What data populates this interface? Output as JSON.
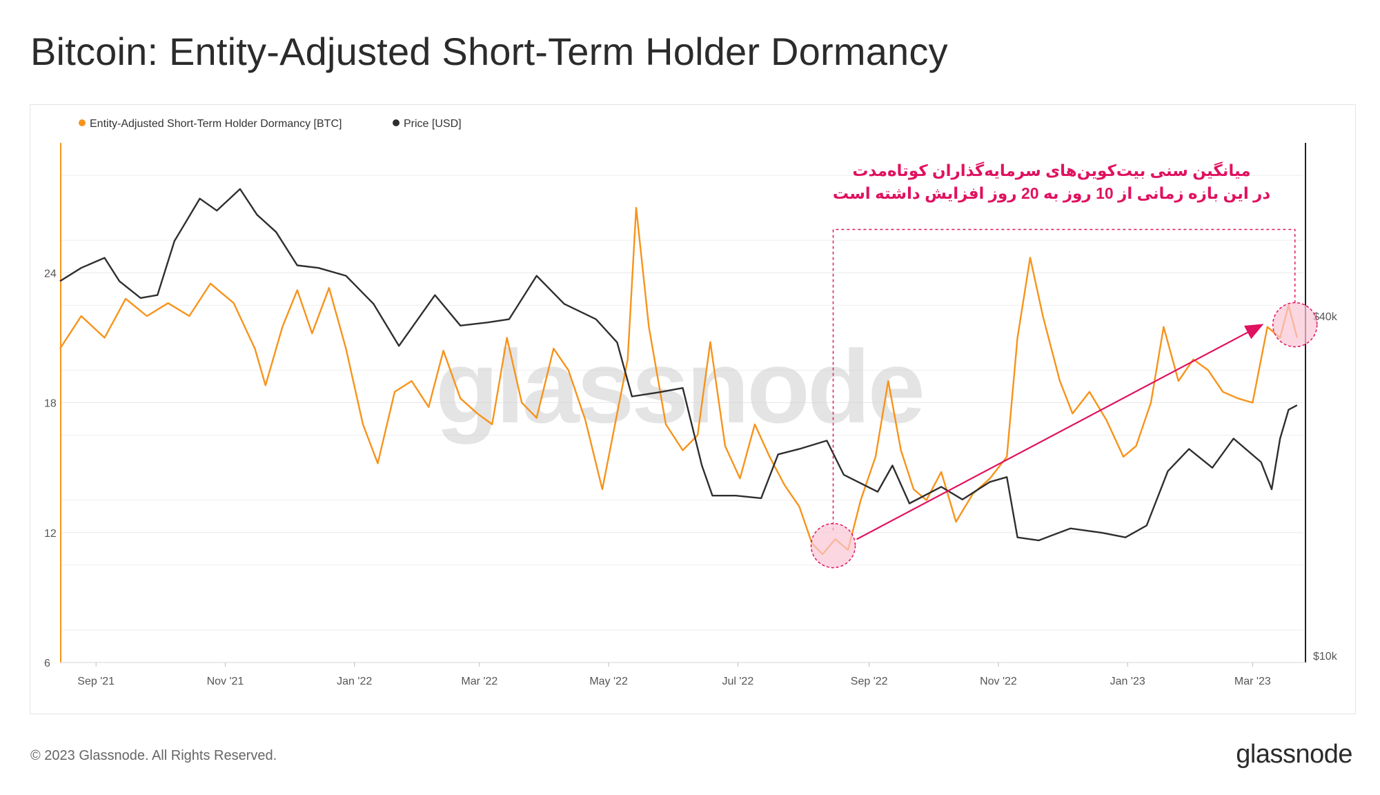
{
  "title": "Bitcoin: Entity-Adjusted Short-Term Holder Dormancy",
  "footer": {
    "copyright": "© 2023 Glassnode. All Rights Reserved.",
    "brand": "glassnode",
    "watermark": "glassnode"
  },
  "colors": {
    "dormancy": "#f7931a",
    "price": "#2e2e2e",
    "annotation": "#e0115f",
    "highlight_fill": "#f9c6d6"
  },
  "chart_data": {
    "type": "line",
    "legend": [
      {
        "name": "Entity-Adjusted Short-Term Holder Dormancy [BTC]",
        "color": "#f7931a"
      },
      {
        "name": "Price [USD]",
        "color": "#2e2e2e"
      }
    ],
    "legend_position": "top-left",
    "x_ticks": [
      "Sep '21",
      "Nov '21",
      "Jan '22",
      "Mar '22",
      "May '22",
      "Jul '22",
      "Sep '22",
      "Nov '22",
      "Jan '23",
      "Mar '23"
    ],
    "x_tick_dates": [
      "2021-09-01",
      "2021-11-01",
      "2022-01-01",
      "2022-03-01",
      "2022-05-01",
      "2022-07-01",
      "2022-09-01",
      "2022-11-01",
      "2023-01-01",
      "2023-03-01"
    ],
    "x_range": [
      "2021-08-15",
      "2023-03-25"
    ],
    "y_left": {
      "ticks": [
        "6",
        "12",
        "18",
        "24"
      ],
      "tick_values": [
        6,
        12,
        18,
        24
      ],
      "range": [
        6,
        30
      ]
    },
    "y_right": {
      "ticks": [
        "$10k",
        "$40k"
      ],
      "tick_values": [
        10000,
        40000
      ],
      "scale": "log",
      "range": [
        10000,
        80000
      ]
    },
    "grid": true,
    "series": [
      {
        "name": "Entity-Adjusted Short-Term Holder Dormancy [BTC]",
        "axis": "left",
        "points": [
          [
            "2021-08-15",
            20.5
          ],
          [
            "2021-08-25",
            22.0
          ],
          [
            "2021-09-05",
            21.0
          ],
          [
            "2021-09-15",
            22.8
          ],
          [
            "2021-09-25",
            22.0
          ],
          [
            "2021-10-05",
            22.6
          ],
          [
            "2021-10-15",
            22.0
          ],
          [
            "2021-10-25",
            23.5
          ],
          [
            "2021-11-05",
            22.6
          ],
          [
            "2021-11-15",
            20.5
          ],
          [
            "2021-11-20",
            18.8
          ],
          [
            "2021-11-28",
            21.5
          ],
          [
            "2021-12-05",
            23.2
          ],
          [
            "2021-12-12",
            21.2
          ],
          [
            "2021-12-20",
            23.3
          ],
          [
            "2021-12-28",
            20.5
          ],
          [
            "2022-01-05",
            17.0
          ],
          [
            "2022-01-12",
            15.2
          ],
          [
            "2022-01-20",
            18.5
          ],
          [
            "2022-01-28",
            19.0
          ],
          [
            "2022-02-05",
            17.8
          ],
          [
            "2022-02-12",
            20.4
          ],
          [
            "2022-02-20",
            18.2
          ],
          [
            "2022-02-28",
            17.5
          ],
          [
            "2022-03-07",
            17.0
          ],
          [
            "2022-03-14",
            21.0
          ],
          [
            "2022-03-21",
            18.0
          ],
          [
            "2022-03-28",
            17.3
          ],
          [
            "2022-04-05",
            20.5
          ],
          [
            "2022-04-12",
            19.5
          ],
          [
            "2022-04-20",
            17.2
          ],
          [
            "2022-04-28",
            14.0
          ],
          [
            "2022-05-05",
            17.5
          ],
          [
            "2022-05-10",
            20.0
          ],
          [
            "2022-05-14",
            27.0
          ],
          [
            "2022-05-20",
            21.5
          ],
          [
            "2022-05-28",
            17.0
          ],
          [
            "2022-06-05",
            15.8
          ],
          [
            "2022-06-12",
            16.5
          ],
          [
            "2022-06-18",
            20.8
          ],
          [
            "2022-06-25",
            16.0
          ],
          [
            "2022-07-02",
            14.5
          ],
          [
            "2022-07-09",
            17.0
          ],
          [
            "2022-07-16",
            15.5
          ],
          [
            "2022-07-23",
            14.2
          ],
          [
            "2022-07-30",
            13.2
          ],
          [
            "2022-08-05",
            11.5
          ],
          [
            "2022-08-10",
            11.0
          ],
          [
            "2022-08-16",
            11.7
          ],
          [
            "2022-08-22",
            11.2
          ],
          [
            "2022-08-28",
            13.5
          ],
          [
            "2022-09-04",
            15.5
          ],
          [
            "2022-09-10",
            19.0
          ],
          [
            "2022-09-16",
            15.8
          ],
          [
            "2022-09-22",
            14.0
          ],
          [
            "2022-09-28",
            13.5
          ],
          [
            "2022-10-05",
            14.8
          ],
          [
            "2022-10-12",
            12.5
          ],
          [
            "2022-10-20",
            13.8
          ],
          [
            "2022-10-28",
            14.5
          ],
          [
            "2022-11-05",
            15.5
          ],
          [
            "2022-11-10",
            21.0
          ],
          [
            "2022-11-16",
            24.7
          ],
          [
            "2022-11-22",
            22.0
          ],
          [
            "2022-11-30",
            19.0
          ],
          [
            "2022-12-06",
            17.5
          ],
          [
            "2022-12-14",
            18.5
          ],
          [
            "2022-12-22",
            17.2
          ],
          [
            "2022-12-30",
            15.5
          ],
          [
            "2023-01-05",
            16.0
          ],
          [
            "2023-01-12",
            18.0
          ],
          [
            "2023-01-18",
            21.5
          ],
          [
            "2023-01-25",
            19.0
          ],
          [
            "2023-02-01",
            20.0
          ],
          [
            "2023-02-08",
            19.5
          ],
          [
            "2023-02-15",
            18.5
          ],
          [
            "2023-02-22",
            18.2
          ],
          [
            "2023-03-01",
            18.0
          ],
          [
            "2023-03-08",
            21.5
          ],
          [
            "2023-03-14",
            21.0
          ],
          [
            "2023-03-18",
            22.5
          ],
          [
            "2023-03-22",
            21.0
          ]
        ]
      },
      {
        "name": "Price [USD]",
        "axis": "right",
        "points": [
          [
            "2021-08-15",
            46000
          ],
          [
            "2021-08-25",
            48500
          ],
          [
            "2021-09-05",
            50500
          ],
          [
            "2021-09-12",
            46000
          ],
          [
            "2021-09-22",
            43000
          ],
          [
            "2021-09-30",
            43500
          ],
          [
            "2021-10-08",
            54000
          ],
          [
            "2021-10-20",
            64000
          ],
          [
            "2021-10-28",
            61000
          ],
          [
            "2021-11-08",
            66500
          ],
          [
            "2021-11-16",
            60000
          ],
          [
            "2021-11-25",
            56000
          ],
          [
            "2021-12-05",
            49000
          ],
          [
            "2021-12-15",
            48500
          ],
          [
            "2021-12-28",
            47000
          ],
          [
            "2022-01-10",
            42000
          ],
          [
            "2022-01-22",
            35500
          ],
          [
            "2022-02-08",
            43500
          ],
          [
            "2022-02-20",
            38500
          ],
          [
            "2022-03-05",
            39000
          ],
          [
            "2022-03-15",
            39500
          ],
          [
            "2022-03-28",
            47000
          ],
          [
            "2022-04-10",
            42000
          ],
          [
            "2022-04-25",
            39500
          ],
          [
            "2022-05-05",
            36000
          ],
          [
            "2022-05-12",
            29000
          ],
          [
            "2022-05-25",
            29500
          ],
          [
            "2022-06-05",
            30000
          ],
          [
            "2022-06-14",
            22000
          ],
          [
            "2022-06-19",
            19500
          ],
          [
            "2022-06-30",
            19500
          ],
          [
            "2022-07-12",
            19300
          ],
          [
            "2022-07-20",
            23000
          ],
          [
            "2022-07-30",
            23500
          ],
          [
            "2022-08-12",
            24300
          ],
          [
            "2022-08-20",
            21200
          ],
          [
            "2022-09-05",
            19800
          ],
          [
            "2022-09-12",
            22000
          ],
          [
            "2022-09-20",
            18900
          ],
          [
            "2022-10-05",
            20200
          ],
          [
            "2022-10-15",
            19200
          ],
          [
            "2022-10-28",
            20600
          ],
          [
            "2022-11-05",
            21000
          ],
          [
            "2022-11-10",
            16500
          ],
          [
            "2022-11-20",
            16300
          ],
          [
            "2022-12-05",
            17100
          ],
          [
            "2022-12-20",
            16800
          ],
          [
            "2022-12-31",
            16500
          ],
          [
            "2023-01-10",
            17300
          ],
          [
            "2023-01-20",
            21500
          ],
          [
            "2023-01-30",
            23500
          ],
          [
            "2023-02-10",
            21800
          ],
          [
            "2023-02-20",
            24500
          ],
          [
            "2023-03-05",
            22300
          ],
          [
            "2023-03-10",
            20000
          ],
          [
            "2023-03-14",
            24500
          ],
          [
            "2023-03-18",
            27500
          ],
          [
            "2023-03-22",
            28000
          ]
        ]
      }
    ],
    "annotation": {
      "lines": [
        "میانگین سنی بیت‌کوین‌های سرمایه‌گذاران کوتاه‌مدت",
        "در این بازه زمانی از 10 روز به 20 روز افزایش داشته است"
      ],
      "arrow_from": [
        "2022-08-15",
        11.5
      ],
      "arrow_to": [
        "2023-03-18",
        21.7
      ],
      "highlight_start": [
        "2022-08-15",
        11.4
      ],
      "highlight_end": [
        "2023-03-21",
        21.6
      ],
      "box_from": [
        "2022-08-15",
        12.1
      ],
      "box_to": [
        "2023-03-21",
        26.0
      ]
    }
  }
}
